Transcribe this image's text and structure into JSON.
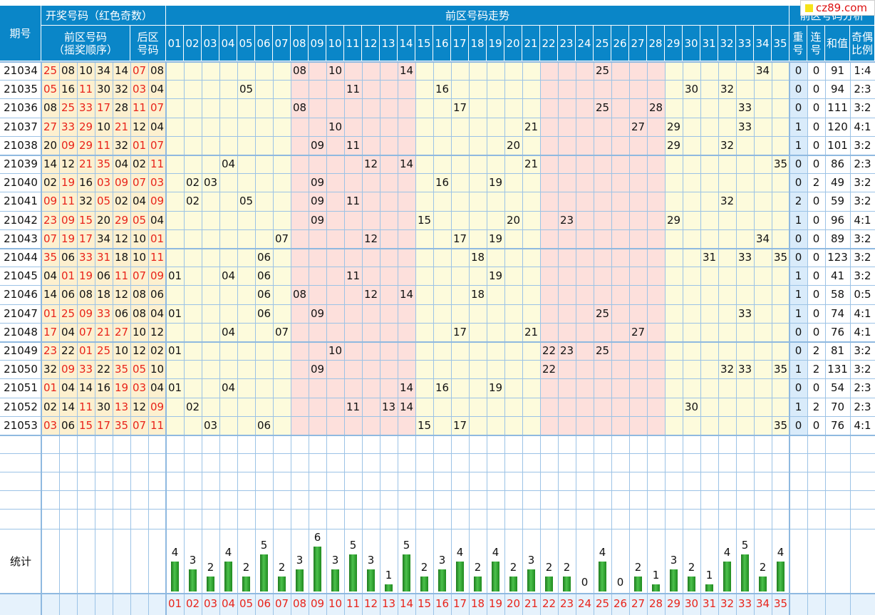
{
  "header": {
    "issue": "期号",
    "lottery_numbers": "开奖号码（红色奇数）",
    "front_numbers": "前区号码",
    "draw_order": "（摇奖顺序）",
    "back_numbers": "后区",
    "back_numbers2": "号码",
    "front_trend": "前区号码走势",
    "front_analysis": "前区号码分析",
    "repeat": "重",
    "repeat2": "号",
    "consecutive": "连",
    "consecutive2": "号",
    "sum": "和值",
    "oddeven": "奇偶",
    "oddeven2": "比例"
  },
  "watermark": "cz89.com",
  "columns": [
    "01",
    "02",
    "03",
    "04",
    "05",
    "06",
    "07",
    "08",
    "09",
    "10",
    "11",
    "12",
    "13",
    "14",
    "15",
    "16",
    "17",
    "18",
    "19",
    "20",
    "21",
    "22",
    "23",
    "24",
    "25",
    "26",
    "27",
    "28",
    "29",
    "30",
    "31",
    "32",
    "33",
    "34",
    "35"
  ],
  "rows": [
    {
      "issue": "21034",
      "front": [
        "25",
        "08",
        "10",
        "34",
        "14"
      ],
      "back": [
        "07",
        "08"
      ],
      "repeat": "0",
      "cons": "0",
      "sum": "91",
      "ratio": "1:4"
    },
    {
      "issue": "21035",
      "front": [
        "05",
        "16",
        "11",
        "30",
        "32"
      ],
      "back": [
        "03",
        "04"
      ],
      "repeat": "0",
      "cons": "0",
      "sum": "94",
      "ratio": "2:3"
    },
    {
      "issue": "21036",
      "front": [
        "08",
        "25",
        "33",
        "17",
        "28"
      ],
      "back": [
        "11",
        "07"
      ],
      "repeat": "0",
      "cons": "0",
      "sum": "111",
      "ratio": "3:2"
    },
    {
      "issue": "21037",
      "front": [
        "27",
        "33",
        "29",
        "10",
        "21"
      ],
      "back": [
        "12",
        "04"
      ],
      "repeat": "1",
      "cons": "0",
      "sum": "120",
      "ratio": "4:1"
    },
    {
      "issue": "21038",
      "front": [
        "20",
        "09",
        "29",
        "11",
        "32"
      ],
      "back": [
        "01",
        "07"
      ],
      "repeat": "1",
      "cons": "0",
      "sum": "101",
      "ratio": "3:2"
    },
    {
      "issue": "21039",
      "front": [
        "14",
        "12",
        "21",
        "35",
        "04"
      ],
      "back": [
        "02",
        "11"
      ],
      "repeat": "0",
      "cons": "0",
      "sum": "86",
      "ratio": "2:3"
    },
    {
      "issue": "21040",
      "front": [
        "02",
        "19",
        "16",
        "03",
        "09"
      ],
      "back": [
        "07",
        "03"
      ],
      "repeat": "0",
      "cons": "2",
      "sum": "49",
      "ratio": "3:2"
    },
    {
      "issue": "21041",
      "front": [
        "09",
        "11",
        "32",
        "05",
        "02"
      ],
      "back": [
        "04",
        "09"
      ],
      "repeat": "2",
      "cons": "0",
      "sum": "59",
      "ratio": "3:2"
    },
    {
      "issue": "21042",
      "front": [
        "23",
        "09",
        "15",
        "20",
        "29"
      ],
      "back": [
        "05",
        "04"
      ],
      "repeat": "1",
      "cons": "0",
      "sum": "96",
      "ratio": "4:1"
    },
    {
      "issue": "21043",
      "front": [
        "07",
        "19",
        "17",
        "34",
        "12"
      ],
      "back": [
        "10",
        "01"
      ],
      "repeat": "0",
      "cons": "0",
      "sum": "89",
      "ratio": "3:2"
    },
    {
      "issue": "21044",
      "front": [
        "35",
        "06",
        "33",
        "31",
        "18"
      ],
      "back": [
        "10",
        "11"
      ],
      "repeat": "0",
      "cons": "0",
      "sum": "123",
      "ratio": "3:2"
    },
    {
      "issue": "21045",
      "front": [
        "04",
        "01",
        "19",
        "06",
        "11"
      ],
      "back": [
        "07",
        "09"
      ],
      "repeat": "1",
      "cons": "0",
      "sum": "41",
      "ratio": "3:2"
    },
    {
      "issue": "21046",
      "front": [
        "14",
        "06",
        "08",
        "18",
        "12"
      ],
      "back": [
        "08",
        "06"
      ],
      "repeat": "1",
      "cons": "0",
      "sum": "58",
      "ratio": "0:5"
    },
    {
      "issue": "21047",
      "front": [
        "01",
        "25",
        "09",
        "33",
        "06"
      ],
      "back": [
        "08",
        "04"
      ],
      "repeat": "1",
      "cons": "0",
      "sum": "74",
      "ratio": "4:1"
    },
    {
      "issue": "21048",
      "front": [
        "17",
        "04",
        "07",
        "21",
        "27"
      ],
      "back": [
        "10",
        "12"
      ],
      "repeat": "0",
      "cons": "0",
      "sum": "76",
      "ratio": "4:1"
    },
    {
      "issue": "21049",
      "front": [
        "23",
        "22",
        "01",
        "25",
        "10"
      ],
      "back": [
        "12",
        "02"
      ],
      "repeat": "0",
      "cons": "2",
      "sum": "81",
      "ratio": "3:2"
    },
    {
      "issue": "21050",
      "front": [
        "32",
        "09",
        "33",
        "22",
        "35"
      ],
      "back": [
        "05",
        "10"
      ],
      "repeat": "1",
      "cons": "2",
      "sum": "131",
      "ratio": "3:2"
    },
    {
      "issue": "21051",
      "front": [
        "01",
        "04",
        "14",
        "16",
        "19"
      ],
      "back": [
        "03",
        "04"
      ],
      "repeat": "0",
      "cons": "0",
      "sum": "54",
      "ratio": "2:3"
    },
    {
      "issue": "21052",
      "front": [
        "02",
        "14",
        "11",
        "30",
        "13"
      ],
      "back": [
        "12",
        "09"
      ],
      "repeat": "1",
      "cons": "2",
      "sum": "70",
      "ratio": "2:3"
    },
    {
      "issue": "21053",
      "front": [
        "03",
        "06",
        "15",
        "17",
        "35"
      ],
      "back": [
        "07",
        "11"
      ],
      "repeat": "0",
      "cons": "0",
      "sum": "76",
      "ratio": "4:1"
    }
  ],
  "stats": {
    "label": "统计",
    "counts": [
      4,
      3,
      2,
      4,
      2,
      5,
      2,
      3,
      6,
      3,
      5,
      3,
      1,
      5,
      2,
      3,
      4,
      2,
      4,
      2,
      3,
      2,
      2,
      0,
      4,
      0,
      2,
      1,
      3,
      2,
      1,
      4,
      5,
      2,
      4
    ]
  }
}
